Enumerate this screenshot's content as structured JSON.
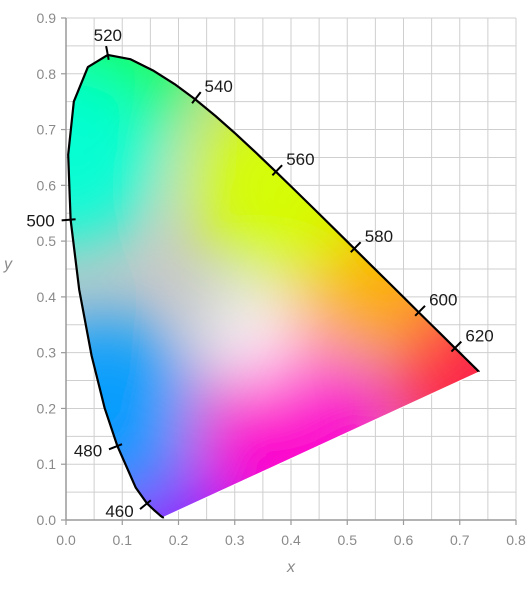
{
  "chart_data": {
    "type": "scatter",
    "xlabel": "x",
    "ylabel": "y",
    "xlim": [
      0.0,
      0.8
    ],
    "ylim": [
      0.0,
      0.9
    ],
    "x_ticks": [
      "0.0",
      "0.1",
      "0.2",
      "0.3",
      "0.4",
      "0.5",
      "0.6",
      "0.7",
      "0.8"
    ],
    "y_ticks": [
      "0.0",
      "0.1",
      "0.2",
      "0.3",
      "0.4",
      "0.5",
      "0.6",
      "0.7",
      "0.8",
      "0.9"
    ],
    "grid": "on",
    "spectral_locus": {
      "x": [
        0.1741,
        0.1738,
        0.1733,
        0.1726,
        0.1714,
        0.1689,
        0.1644,
        0.1566,
        0.144,
        0.1241,
        0.0913,
        0.0687,
        0.0454,
        0.0235,
        0.0082,
        0.0039,
        0.0139,
        0.0389,
        0.0743,
        0.1142,
        0.1547,
        0.1929,
        0.2296,
        0.2658,
        0.3016,
        0.3373,
        0.3731,
        0.4087,
        0.4441,
        0.4788,
        0.5125,
        0.5448,
        0.5752,
        0.6029,
        0.627,
        0.6482,
        0.6658,
        0.6801,
        0.6915,
        0.7006,
        0.7079,
        0.714,
        0.719,
        0.723,
        0.726,
        0.7283,
        0.73,
        0.7311,
        0.732,
        0.7327,
        0.7334,
        0.734,
        0.7344,
        0.7346,
        0.7347
      ],
      "y": [
        0.005,
        0.0049,
        0.0048,
        0.0048,
        0.0051,
        0.0069,
        0.0109,
        0.0177,
        0.0297,
        0.0578,
        0.1327,
        0.2007,
        0.295,
        0.4127,
        0.5384,
        0.6548,
        0.7502,
        0.812,
        0.8338,
        0.8262,
        0.8059,
        0.7816,
        0.7543,
        0.7243,
        0.6923,
        0.6589,
        0.6245,
        0.5896,
        0.5547,
        0.5202,
        0.4866,
        0.4544,
        0.4242,
        0.3965,
        0.3725,
        0.3514,
        0.334,
        0.3197,
        0.3083,
        0.2993,
        0.292,
        0.2859,
        0.2809,
        0.277,
        0.274,
        0.2717,
        0.27,
        0.2689,
        0.268,
        0.2673,
        0.2666,
        0.266,
        0.2656,
        0.2654,
        0.2653
      ]
    },
    "primaries": [
      {
        "x": 0.7347,
        "y": 0.2653,
        "color": "#ff1a40"
      },
      {
        "x": 0.082,
        "y": 0.834,
        "color": "#19ff40"
      },
      {
        "x": 0.174,
        "y": 0.005,
        "color": "#8800ff"
      },
      {
        "x": 0.004,
        "y": 0.655,
        "color": "#00ffd5"
      },
      {
        "x": 0.07,
        "y": 0.2,
        "color": "#009cff"
      },
      {
        "x": 0.4,
        "y": 0.16,
        "color": "#ff00cc"
      },
      {
        "x": 0.52,
        "y": 0.47,
        "color": "#ffad00"
      },
      {
        "x": 0.38,
        "y": 0.6,
        "color": "#d5ff00"
      }
    ],
    "white_point": {
      "x": 0.3333,
      "y": 0.3333,
      "color": "#ffffff"
    },
    "wavelength_labels": [
      {
        "text": "460",
        "x": 0.144,
        "y": 0.0297,
        "dir": "left"
      },
      {
        "text": "480",
        "x": 0.0913,
        "y": 0.1327,
        "dir": "left"
      },
      {
        "text": "500",
        "x": 0.0082,
        "y": 0.5384,
        "dir": "left"
      },
      {
        "text": "520",
        "x": 0.0743,
        "y": 0.8338,
        "dir": "up"
      },
      {
        "text": "540",
        "x": 0.2296,
        "y": 0.7543,
        "dir": "right"
      },
      {
        "text": "560",
        "x": 0.3731,
        "y": 0.6245,
        "dir": "right"
      },
      {
        "text": "580",
        "x": 0.5125,
        "y": 0.4866,
        "dir": "right"
      },
      {
        "text": "600",
        "x": 0.627,
        "y": 0.3725,
        "dir": "right"
      },
      {
        "text": "620",
        "x": 0.6915,
        "y": 0.3083,
        "dir": "right"
      }
    ]
  },
  "colors": {
    "grid": "#cfcfcf",
    "axis": "#9a9a9a",
    "locus": "#000000",
    "background": "#ffffff"
  }
}
